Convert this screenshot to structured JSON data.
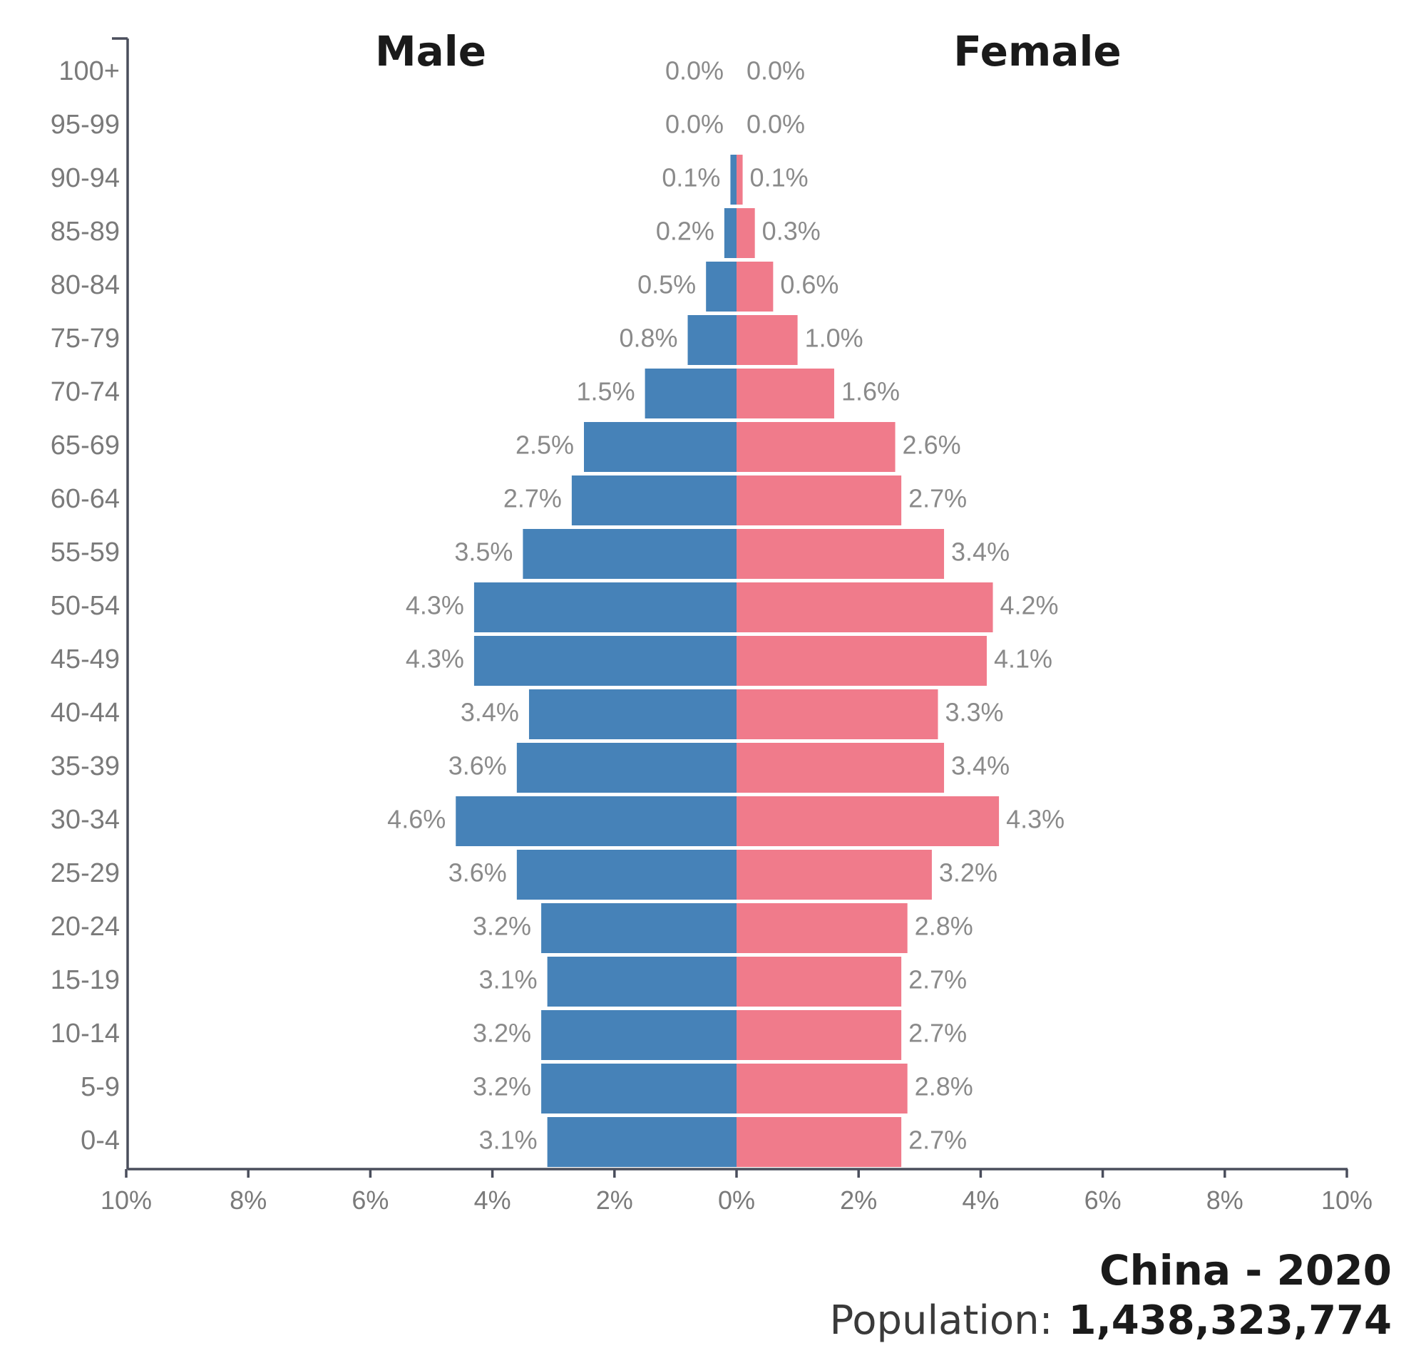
{
  "chart_data": {
    "type": "bar",
    "orientation": "horizontal",
    "layout": "population-pyramid",
    "categories": [
      "0-4",
      "5-9",
      "10-14",
      "15-19",
      "20-24",
      "25-29",
      "30-34",
      "35-39",
      "40-44",
      "45-49",
      "50-54",
      "55-59",
      "60-64",
      "65-69",
      "70-74",
      "75-79",
      "80-84",
      "85-89",
      "90-94",
      "95-99",
      "100+"
    ],
    "series": [
      {
        "name": "Male",
        "color": "#4682b8",
        "values": [
          3.1,
          3.2,
          3.2,
          3.1,
          3.2,
          3.6,
          4.6,
          3.6,
          3.4,
          4.3,
          4.3,
          3.5,
          2.7,
          2.5,
          1.5,
          0.8,
          0.5,
          0.2,
          0.1,
          0.0,
          0.0
        ],
        "labels": [
          "3.1%",
          "3.2%",
          "3.2%",
          "3.1%",
          "3.2%",
          "3.6%",
          "4.6%",
          "3.6%",
          "3.4%",
          "4.3%",
          "4.3%",
          "3.5%",
          "2.7%",
          "2.5%",
          "1.5%",
          "0.8%",
          "0.5%",
          "0.2%",
          "0.1%",
          "0.0%",
          "0.0%"
        ]
      },
      {
        "name": "Female",
        "color": "#f07b8b",
        "values": [
          2.7,
          2.8,
          2.7,
          2.7,
          2.8,
          3.2,
          4.3,
          3.4,
          3.3,
          4.1,
          4.2,
          3.4,
          2.7,
          2.6,
          1.6,
          1.0,
          0.6,
          0.3,
          0.1,
          0.0,
          0.0
        ],
        "labels": [
          "2.7%",
          "2.8%",
          "2.7%",
          "2.7%",
          "2.8%",
          "3.2%",
          "4.3%",
          "3.4%",
          "3.3%",
          "4.1%",
          "4.2%",
          "3.4%",
          "2.7%",
          "2.6%",
          "1.6%",
          "1.0%",
          "0.6%",
          "0.3%",
          "0.1%",
          "0.0%",
          "0.0%"
        ]
      }
    ],
    "xlim": [
      -10,
      10
    ],
    "xticks": [
      -10,
      -8,
      -6,
      -4,
      -2,
      0,
      2,
      4,
      6,
      8,
      10
    ],
    "xtick_labels": [
      "10%",
      "8%",
      "6%",
      "4%",
      "2%",
      "0%",
      "2%",
      "4%",
      "6%",
      "8%",
      "10%"
    ],
    "grid": false
  },
  "header": {
    "male_label": "Male",
    "female_label": "Female"
  },
  "caption": {
    "country_year": "China - 2020",
    "population_label": "Population:",
    "population_value": "1,438,323,774"
  }
}
